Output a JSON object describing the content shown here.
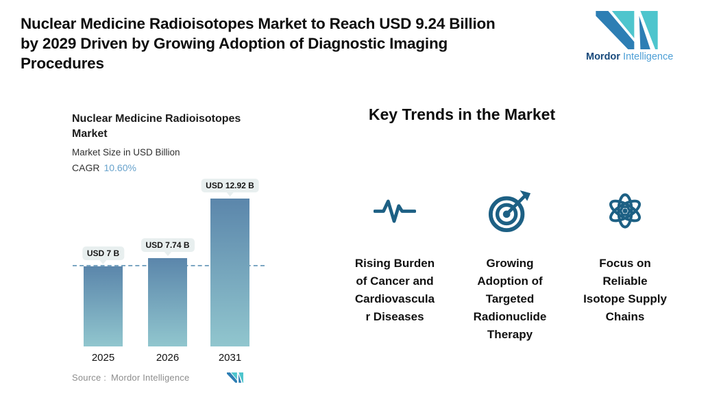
{
  "header": {
    "title_display": "Nuclear Medicine Radioisotopes Market to Reach USD 9.24 Billion\nby 2029 Driven by Growing Adoption of Diagnostic Imaging\nProcedures"
  },
  "brand": {
    "name_primary": "Mordor",
    "name_secondary": "Intelligence"
  },
  "chart_data": {
    "type": "bar",
    "title": "Nuclear Medicine Radioisotopes Market",
    "title_display": "Nuclear Medicine Radioisotopes\nMarket",
    "subtitle": "Market Size in USD Billion",
    "cagr_label": "CAGR",
    "cagr_value": "10.60%",
    "categories": [
      "2025",
      "2026",
      "2031"
    ],
    "values": [
      7,
      7.74,
      12.92
    ],
    "value_labels": [
      "USD 7 B",
      "USD 7.74 B",
      "USD 12.92 B"
    ],
    "unit": "USD Billion",
    "reference_line_value": 7,
    "ylim": [
      0,
      14
    ],
    "grid": false,
    "legend": "none",
    "source_label": "Source :",
    "source_value": "Mordor Intelligence"
  },
  "trends": {
    "heading": "Key Trends in the Market",
    "items": [
      {
        "icon": "pulse-icon",
        "label": "Rising Burden\nof Cancer and\nCardiovascula\nr Diseases"
      },
      {
        "icon": "target-arrow-icon",
        "label": "Growing\nAdoption of\nTargeted\nRadionuclide\nTherapy"
      },
      {
        "icon": "atom-icon",
        "label": "Focus on\nReliable\nIsotope Supply\nChains"
      }
    ]
  },
  "colors": {
    "accent_blue": "#67a2cc",
    "icon_teal_blue": "#1d6084",
    "bar_top": "#5b86ab",
    "bar_bottom": "#91c6ce",
    "callout_bg": "#e8efef",
    "dash_line": "#7ba6c2",
    "logo_teal": "#4ec5cd",
    "logo_blue": "#2d7eb4",
    "brand_dark": "#17497b",
    "brand_light": "#4d9fd6",
    "source_gray": "#8d8d8d",
    "text_dark": "#0d0d0d"
  }
}
